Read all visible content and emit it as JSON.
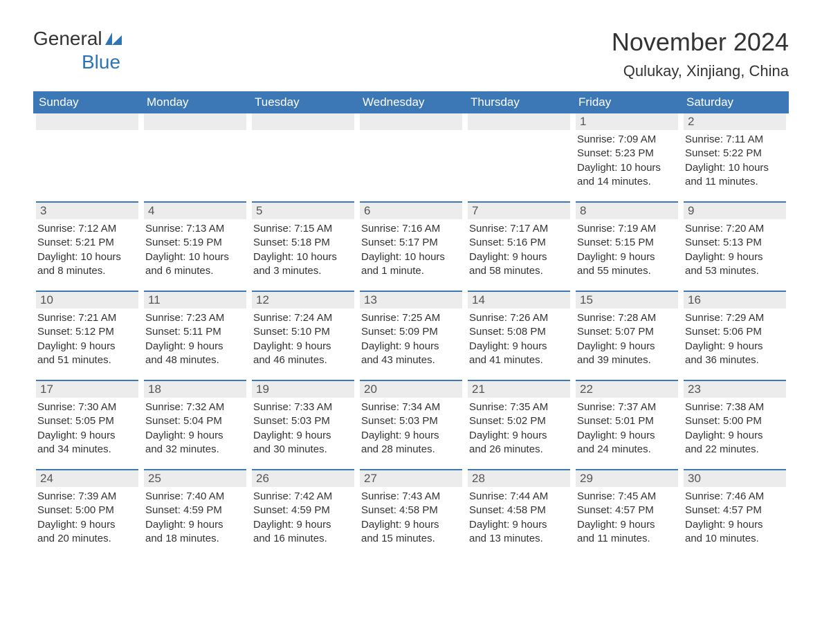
{
  "logo": {
    "general": "General",
    "blue": "Blue"
  },
  "header": {
    "month": "November 2024",
    "location": "Qulukay, Xinjiang, China"
  },
  "colors": {
    "header_bg": "#3b78b5",
    "header_text": "#ffffff",
    "day_bar_bg": "#ececec",
    "day_bar_border": "#3b78b5",
    "body_text": "#333333",
    "logo_blue": "#2e75b6",
    "page_bg": "#ffffff"
  },
  "typography": {
    "month_title_size": 36,
    "location_size": 22,
    "weekday_size": 17,
    "daynum_size": 17,
    "info_size": 15,
    "font_family": "Arial"
  },
  "weekdays": [
    "Sunday",
    "Monday",
    "Tuesday",
    "Wednesday",
    "Thursday",
    "Friday",
    "Saturday"
  ],
  "weeks": [
    [
      null,
      null,
      null,
      null,
      null,
      {
        "n": "1",
        "sr": "Sunrise: 7:09 AM",
        "ss": "Sunset: 5:23 PM",
        "d1": "Daylight: 10 hours",
        "d2": "and 14 minutes."
      },
      {
        "n": "2",
        "sr": "Sunrise: 7:11 AM",
        "ss": "Sunset: 5:22 PM",
        "d1": "Daylight: 10 hours",
        "d2": "and 11 minutes."
      }
    ],
    [
      {
        "n": "3",
        "sr": "Sunrise: 7:12 AM",
        "ss": "Sunset: 5:21 PM",
        "d1": "Daylight: 10 hours",
        "d2": "and 8 minutes."
      },
      {
        "n": "4",
        "sr": "Sunrise: 7:13 AM",
        "ss": "Sunset: 5:19 PM",
        "d1": "Daylight: 10 hours",
        "d2": "and 6 minutes."
      },
      {
        "n": "5",
        "sr": "Sunrise: 7:15 AM",
        "ss": "Sunset: 5:18 PM",
        "d1": "Daylight: 10 hours",
        "d2": "and 3 minutes."
      },
      {
        "n": "6",
        "sr": "Sunrise: 7:16 AM",
        "ss": "Sunset: 5:17 PM",
        "d1": "Daylight: 10 hours",
        "d2": "and 1 minute."
      },
      {
        "n": "7",
        "sr": "Sunrise: 7:17 AM",
        "ss": "Sunset: 5:16 PM",
        "d1": "Daylight: 9 hours",
        "d2": "and 58 minutes."
      },
      {
        "n": "8",
        "sr": "Sunrise: 7:19 AM",
        "ss": "Sunset: 5:15 PM",
        "d1": "Daylight: 9 hours",
        "d2": "and 55 minutes."
      },
      {
        "n": "9",
        "sr": "Sunrise: 7:20 AM",
        "ss": "Sunset: 5:13 PM",
        "d1": "Daylight: 9 hours",
        "d2": "and 53 minutes."
      }
    ],
    [
      {
        "n": "10",
        "sr": "Sunrise: 7:21 AM",
        "ss": "Sunset: 5:12 PM",
        "d1": "Daylight: 9 hours",
        "d2": "and 51 minutes."
      },
      {
        "n": "11",
        "sr": "Sunrise: 7:23 AM",
        "ss": "Sunset: 5:11 PM",
        "d1": "Daylight: 9 hours",
        "d2": "and 48 minutes."
      },
      {
        "n": "12",
        "sr": "Sunrise: 7:24 AM",
        "ss": "Sunset: 5:10 PM",
        "d1": "Daylight: 9 hours",
        "d2": "and 46 minutes."
      },
      {
        "n": "13",
        "sr": "Sunrise: 7:25 AM",
        "ss": "Sunset: 5:09 PM",
        "d1": "Daylight: 9 hours",
        "d2": "and 43 minutes."
      },
      {
        "n": "14",
        "sr": "Sunrise: 7:26 AM",
        "ss": "Sunset: 5:08 PM",
        "d1": "Daylight: 9 hours",
        "d2": "and 41 minutes."
      },
      {
        "n": "15",
        "sr": "Sunrise: 7:28 AM",
        "ss": "Sunset: 5:07 PM",
        "d1": "Daylight: 9 hours",
        "d2": "and 39 minutes."
      },
      {
        "n": "16",
        "sr": "Sunrise: 7:29 AM",
        "ss": "Sunset: 5:06 PM",
        "d1": "Daylight: 9 hours",
        "d2": "and 36 minutes."
      }
    ],
    [
      {
        "n": "17",
        "sr": "Sunrise: 7:30 AM",
        "ss": "Sunset: 5:05 PM",
        "d1": "Daylight: 9 hours",
        "d2": "and 34 minutes."
      },
      {
        "n": "18",
        "sr": "Sunrise: 7:32 AM",
        "ss": "Sunset: 5:04 PM",
        "d1": "Daylight: 9 hours",
        "d2": "and 32 minutes."
      },
      {
        "n": "19",
        "sr": "Sunrise: 7:33 AM",
        "ss": "Sunset: 5:03 PM",
        "d1": "Daylight: 9 hours",
        "d2": "and 30 minutes."
      },
      {
        "n": "20",
        "sr": "Sunrise: 7:34 AM",
        "ss": "Sunset: 5:03 PM",
        "d1": "Daylight: 9 hours",
        "d2": "and 28 minutes."
      },
      {
        "n": "21",
        "sr": "Sunrise: 7:35 AM",
        "ss": "Sunset: 5:02 PM",
        "d1": "Daylight: 9 hours",
        "d2": "and 26 minutes."
      },
      {
        "n": "22",
        "sr": "Sunrise: 7:37 AM",
        "ss": "Sunset: 5:01 PM",
        "d1": "Daylight: 9 hours",
        "d2": "and 24 minutes."
      },
      {
        "n": "23",
        "sr": "Sunrise: 7:38 AM",
        "ss": "Sunset: 5:00 PM",
        "d1": "Daylight: 9 hours",
        "d2": "and 22 minutes."
      }
    ],
    [
      {
        "n": "24",
        "sr": "Sunrise: 7:39 AM",
        "ss": "Sunset: 5:00 PM",
        "d1": "Daylight: 9 hours",
        "d2": "and 20 minutes."
      },
      {
        "n": "25",
        "sr": "Sunrise: 7:40 AM",
        "ss": "Sunset: 4:59 PM",
        "d1": "Daylight: 9 hours",
        "d2": "and 18 minutes."
      },
      {
        "n": "26",
        "sr": "Sunrise: 7:42 AM",
        "ss": "Sunset: 4:59 PM",
        "d1": "Daylight: 9 hours",
        "d2": "and 16 minutes."
      },
      {
        "n": "27",
        "sr": "Sunrise: 7:43 AM",
        "ss": "Sunset: 4:58 PM",
        "d1": "Daylight: 9 hours",
        "d2": "and 15 minutes."
      },
      {
        "n": "28",
        "sr": "Sunrise: 7:44 AM",
        "ss": "Sunset: 4:58 PM",
        "d1": "Daylight: 9 hours",
        "d2": "and 13 minutes."
      },
      {
        "n": "29",
        "sr": "Sunrise: 7:45 AM",
        "ss": "Sunset: 4:57 PM",
        "d1": "Daylight: 9 hours",
        "d2": "and 11 minutes."
      },
      {
        "n": "30",
        "sr": "Sunrise: 7:46 AM",
        "ss": "Sunset: 4:57 PM",
        "d1": "Daylight: 9 hours",
        "d2": "and 10 minutes."
      }
    ]
  ]
}
